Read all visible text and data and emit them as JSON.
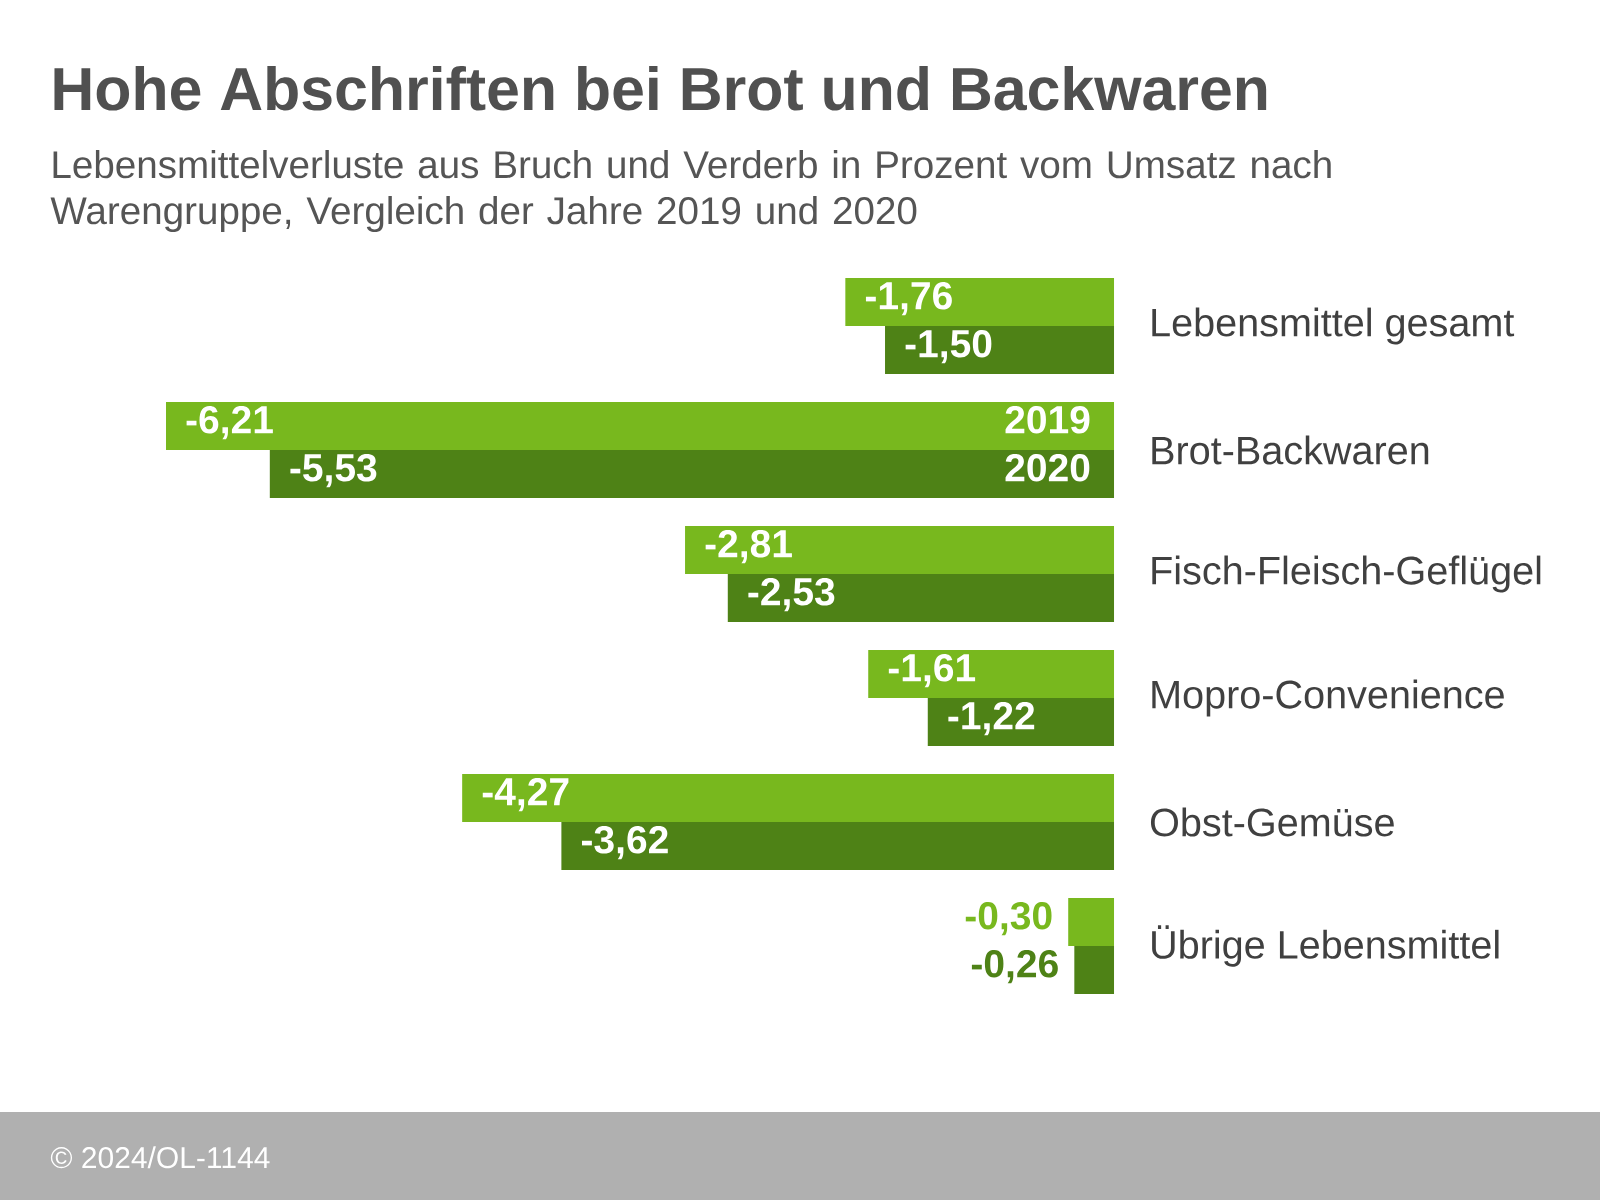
{
  "chart_data": {
    "type": "bar",
    "orientation": "horizontal",
    "title": "Hohe Abschriften bei Brot und Backwaren",
    "subtitle": "Lebensmittelverluste aus Bruch und Verderb in Prozent vom Umsatz nach Warengruppe, Vergleich der Jahre 2019 und 2020",
    "categories": [
      "Lebensmittel gesamt",
      "Brot-Backwaren",
      "Fisch-Fleisch-Geflügel",
      "Mopro-Convenience",
      "Obst-Gemüse",
      "Übrige Lebensmittel"
    ],
    "series": [
      {
        "name": "2019",
        "color": "#78b81e",
        "values": [
          -1.76,
          -6.21,
          -2.81,
          -1.61,
          -4.27,
          -0.3
        ],
        "value_labels": [
          "-1,76",
          "-6,21",
          "-2,81",
          "-1,61",
          "-4,27",
          "-0,30"
        ]
      },
      {
        "name": "2020",
        "color": "#4e8216",
        "values": [
          -1.5,
          -5.53,
          -2.53,
          -1.22,
          -3.62,
          -0.26
        ],
        "value_labels": [
          "-1,50",
          "-5,53",
          "-2,53",
          "-1,22",
          "-3,62",
          "-0,26"
        ]
      }
    ],
    "annotations": [
      "© 2024/OL-1144"
    ]
  }
}
